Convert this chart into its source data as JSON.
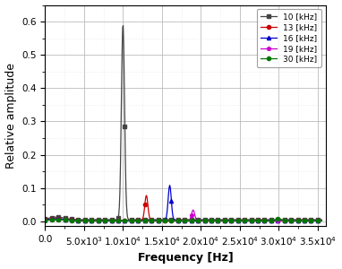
{
  "title": "",
  "xlabel": "Frequency [Hz]",
  "ylabel": "Relative amplitude",
  "xlim": [
    0,
    36000
  ],
  "ylim": [
    -0.015,
    0.65
  ],
  "yticks": [
    0.0,
    0.1,
    0.2,
    0.3,
    0.4,
    0.5,
    0.6
  ],
  "xticks": [
    0,
    5000,
    10000,
    15000,
    20000,
    25000,
    30000,
    35000
  ],
  "xticklabels": [
    "0.0",
    "5.0x10$^3$",
    "1.0x10$^4$",
    "1.5x10$^4$",
    "2.0x10$^4$",
    "2.5x10$^4$",
    "3.0x10$^4$",
    "3.5x10$^4$"
  ],
  "series": [
    {
      "label": "10 [kHz]",
      "color": "#444444",
      "marker": "s",
      "markersize": 3,
      "linewidth": 0.9,
      "peak_freq": 10000,
      "peak_amp": 0.59,
      "noise": 0.005,
      "sigma": 200
    },
    {
      "label": "13 [kHz]",
      "color": "#cc0000",
      "marker": "o",
      "markersize": 3,
      "linewidth": 0.9,
      "peak_freq": 13000,
      "peak_amp": 0.075,
      "noise": 0.003,
      "sigma": 200
    },
    {
      "label": "16 [kHz]",
      "color": "#0000cc",
      "marker": "^",
      "markersize": 3,
      "linewidth": 0.9,
      "peak_freq": 16000,
      "peak_amp": 0.105,
      "noise": 0.003,
      "sigma": 200
    },
    {
      "label": "19 [kHz]",
      "color": "#cc00cc",
      "marker": "p",
      "markersize": 3,
      "linewidth": 0.9,
      "peak_freq": 19000,
      "peak_amp": 0.032,
      "noise": 0.002,
      "sigma": 200
    },
    {
      "label": "30 [kHz]",
      "color": "#007700",
      "marker": "o",
      "markersize": 3,
      "linewidth": 0.9,
      "peak_freq": 30000,
      "peak_amp": 0.008,
      "noise": 0.002,
      "sigma": 200
    }
  ],
  "background_color": "#ffffff",
  "major_grid_color": "#bbbbbb",
  "minor_grid_color": "#dddddd",
  "legend_loc": "upper right",
  "label_fontsize": 9,
  "tick_fontsize": 7.5
}
